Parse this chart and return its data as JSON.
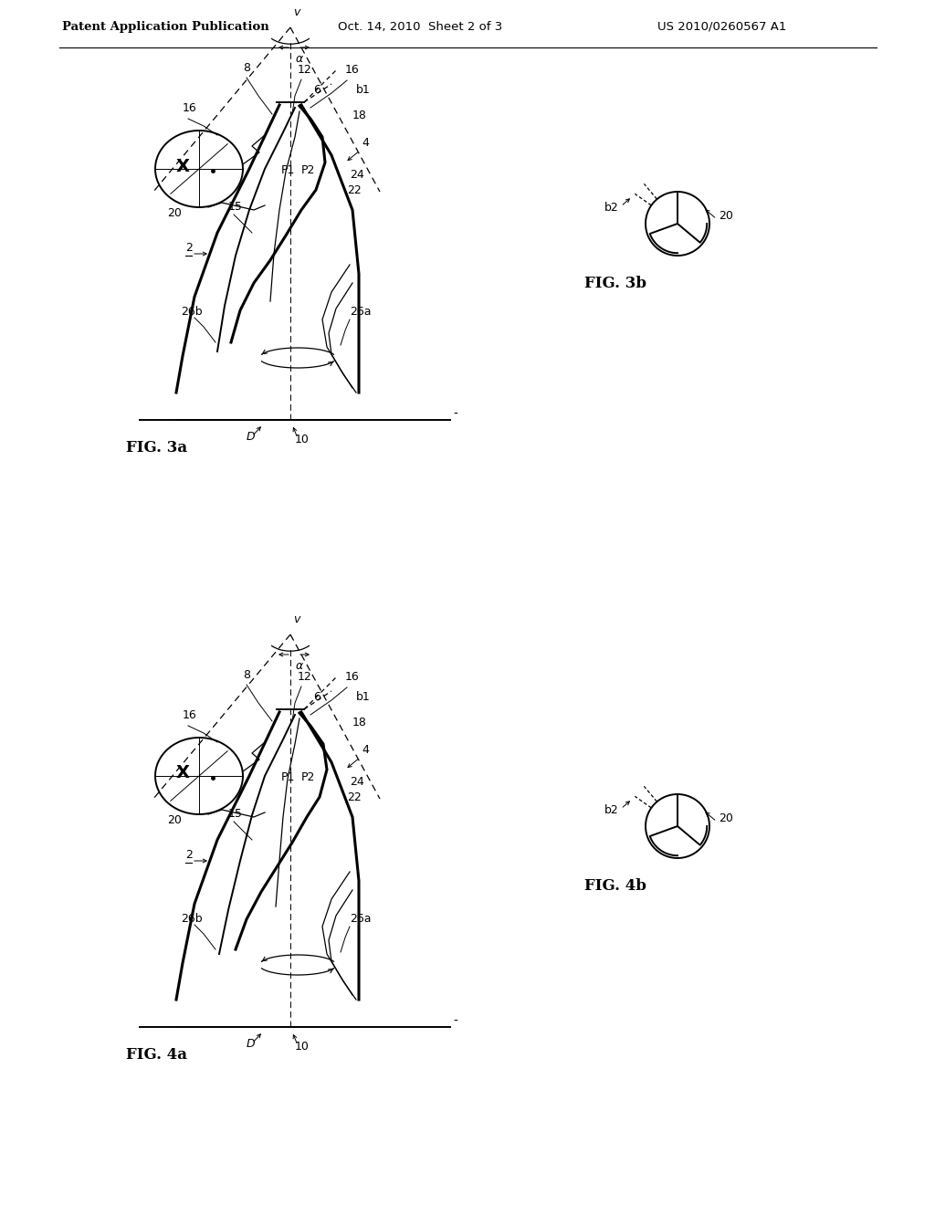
{
  "bg_color": "#ffffff",
  "header_text": "Patent Application Publication",
  "header_date": "Oct. 14, 2010  Sheet 2 of 3",
  "header_patent": "US 2010/0260567 A1",
  "fig3a_label": "FIG. 3a",
  "fig3b_label": "FIG. 3b",
  "fig4a_label": "FIG. 4a",
  "fig4b_label": "FIG. 4b",
  "line_color": "#000000",
  "text_color": "#000000",
  "lw_thick": 2.2,
  "lw_medium": 1.4,
  "lw_thin": 0.9,
  "lw_hair": 0.7
}
